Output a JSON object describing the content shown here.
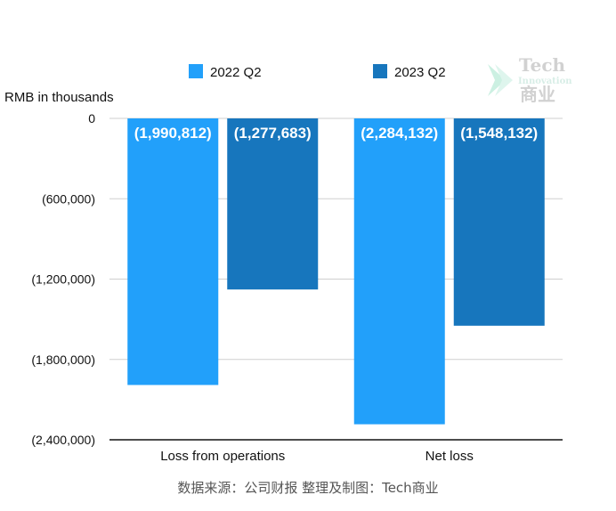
{
  "chart_data": {
    "type": "bar",
    "unit_label": "RMB in thousands",
    "categories": [
      "Loss from operations",
      "Net loss"
    ],
    "series": [
      {
        "name": "2022 Q2",
        "color": "#22a0fa",
        "values": [
          -1990812,
          -2284132
        ],
        "labels": [
          "(1,990,812)",
          "(2,284,132)"
        ]
      },
      {
        "name": "2023 Q2",
        "color": "#1776bd",
        "values": [
          -1277683,
          -1548132
        ],
        "labels": [
          "(1,277,683)",
          "(1,548,132)"
        ]
      }
    ],
    "ylim": [
      -2400000,
      0
    ],
    "yticks": [
      0,
      -600000,
      -1200000,
      -1800000,
      -2400000
    ],
    "ytick_labels": [
      "0",
      "(600,000)",
      "(1,200,000)",
      "(1,800,000)",
      "(2,400,000)"
    ],
    "grid": true,
    "legend_position": "top"
  },
  "source_note": "数据来源：公司财报 整理及制图：Tech商业",
  "watermark": {
    "line1": "Tech",
    "line2": "Innovation",
    "line3": "商业",
    "icon": "chevron-logo-icon"
  }
}
